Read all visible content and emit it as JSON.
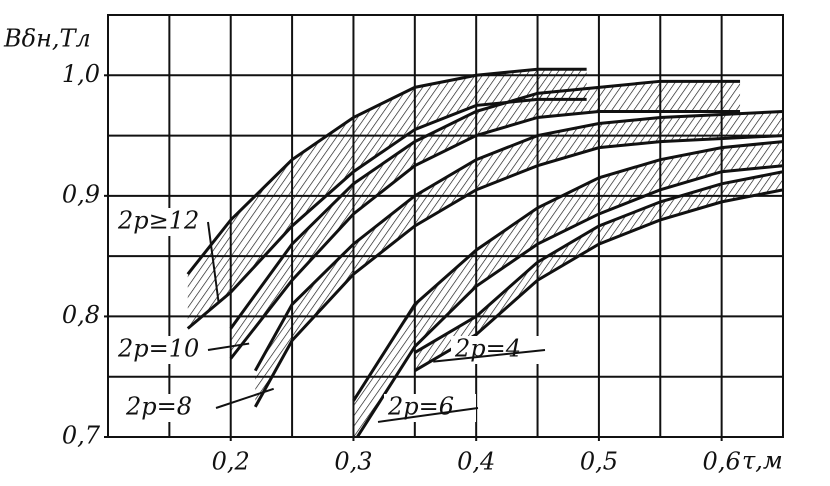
{
  "chart_data": {
    "type": "band",
    "y_label": "Bδн,Тл",
    "x_label": "τ,м",
    "xlim": [
      0.1,
      0.65
    ],
    "ylim": [
      0.7,
      1.05
    ],
    "xticks": [
      {
        "value": 0.2,
        "label": "0,2"
      },
      {
        "value": 0.3,
        "label": "0,3"
      },
      {
        "value": 0.4,
        "label": "0,4"
      },
      {
        "value": 0.5,
        "label": "0,5"
      },
      {
        "value": 0.6,
        "label": "0,6"
      }
    ],
    "yticks": [
      {
        "value": 0.7,
        "label": "0,7"
      },
      {
        "value": 0.8,
        "label": "0,8"
      },
      {
        "value": 0.9,
        "label": "0,9"
      },
      {
        "value": 1.0,
        "label": "1,0"
      }
    ],
    "xgrid": [
      0.1,
      0.15,
      0.2,
      0.25,
      0.3,
      0.35,
      0.4,
      0.45,
      0.5,
      0.55,
      0.6,
      0.65
    ],
    "ygrid": [
      0.7,
      0.75,
      0.8,
      0.85,
      0.9,
      0.95,
      1.0,
      1.05
    ],
    "color": "#111111",
    "series": [
      {
        "name": "2p≥12",
        "x": [
          0.165,
          0.2,
          0.25,
          0.3,
          0.35,
          0.4,
          0.45,
          0.49
        ],
        "upper": [
          0.835,
          0.88,
          0.93,
          0.965,
          0.99,
          1.0,
          1.005,
          1.005
        ],
        "lower": [
          0.79,
          0.82,
          0.875,
          0.92,
          0.955,
          0.975,
          0.98,
          0.98
        ]
      },
      {
        "name": "2p=10",
        "x": [
          0.2,
          0.25,
          0.3,
          0.35,
          0.4,
          0.45,
          0.5,
          0.55,
          0.615
        ],
        "upper": [
          0.79,
          0.86,
          0.91,
          0.945,
          0.97,
          0.985,
          0.99,
          0.995,
          0.995
        ],
        "lower": [
          0.765,
          0.83,
          0.885,
          0.925,
          0.95,
          0.965,
          0.97,
          0.97,
          0.97
        ]
      },
      {
        "name": "2p=8",
        "x": [
          0.22,
          0.25,
          0.3,
          0.35,
          0.4,
          0.45,
          0.5,
          0.55,
          0.65
        ],
        "upper": [
          0.755,
          0.81,
          0.86,
          0.9,
          0.93,
          0.95,
          0.96,
          0.965,
          0.97
        ],
        "lower": [
          0.725,
          0.78,
          0.835,
          0.875,
          0.905,
          0.925,
          0.94,
          0.945,
          0.95
        ]
      },
      {
        "name": "2p=6",
        "x": [
          0.3,
          0.35,
          0.4,
          0.45,
          0.5,
          0.55,
          0.6,
          0.65
        ],
        "upper": [
          0.73,
          0.81,
          0.855,
          0.89,
          0.915,
          0.93,
          0.94,
          0.945
        ],
        "lower": [
          0.695,
          0.775,
          0.825,
          0.86,
          0.885,
          0.905,
          0.92,
          0.925
        ]
      },
      {
        "name": "2p=4",
        "x": [
          0.35,
          0.4,
          0.45,
          0.5,
          0.55,
          0.6,
          0.65
        ],
        "upper": [
          0.77,
          0.8,
          0.845,
          0.875,
          0.895,
          0.91,
          0.92
        ],
        "lower": [
          0.755,
          0.785,
          0.83,
          0.86,
          0.88,
          0.895,
          0.905
        ]
      }
    ]
  }
}
